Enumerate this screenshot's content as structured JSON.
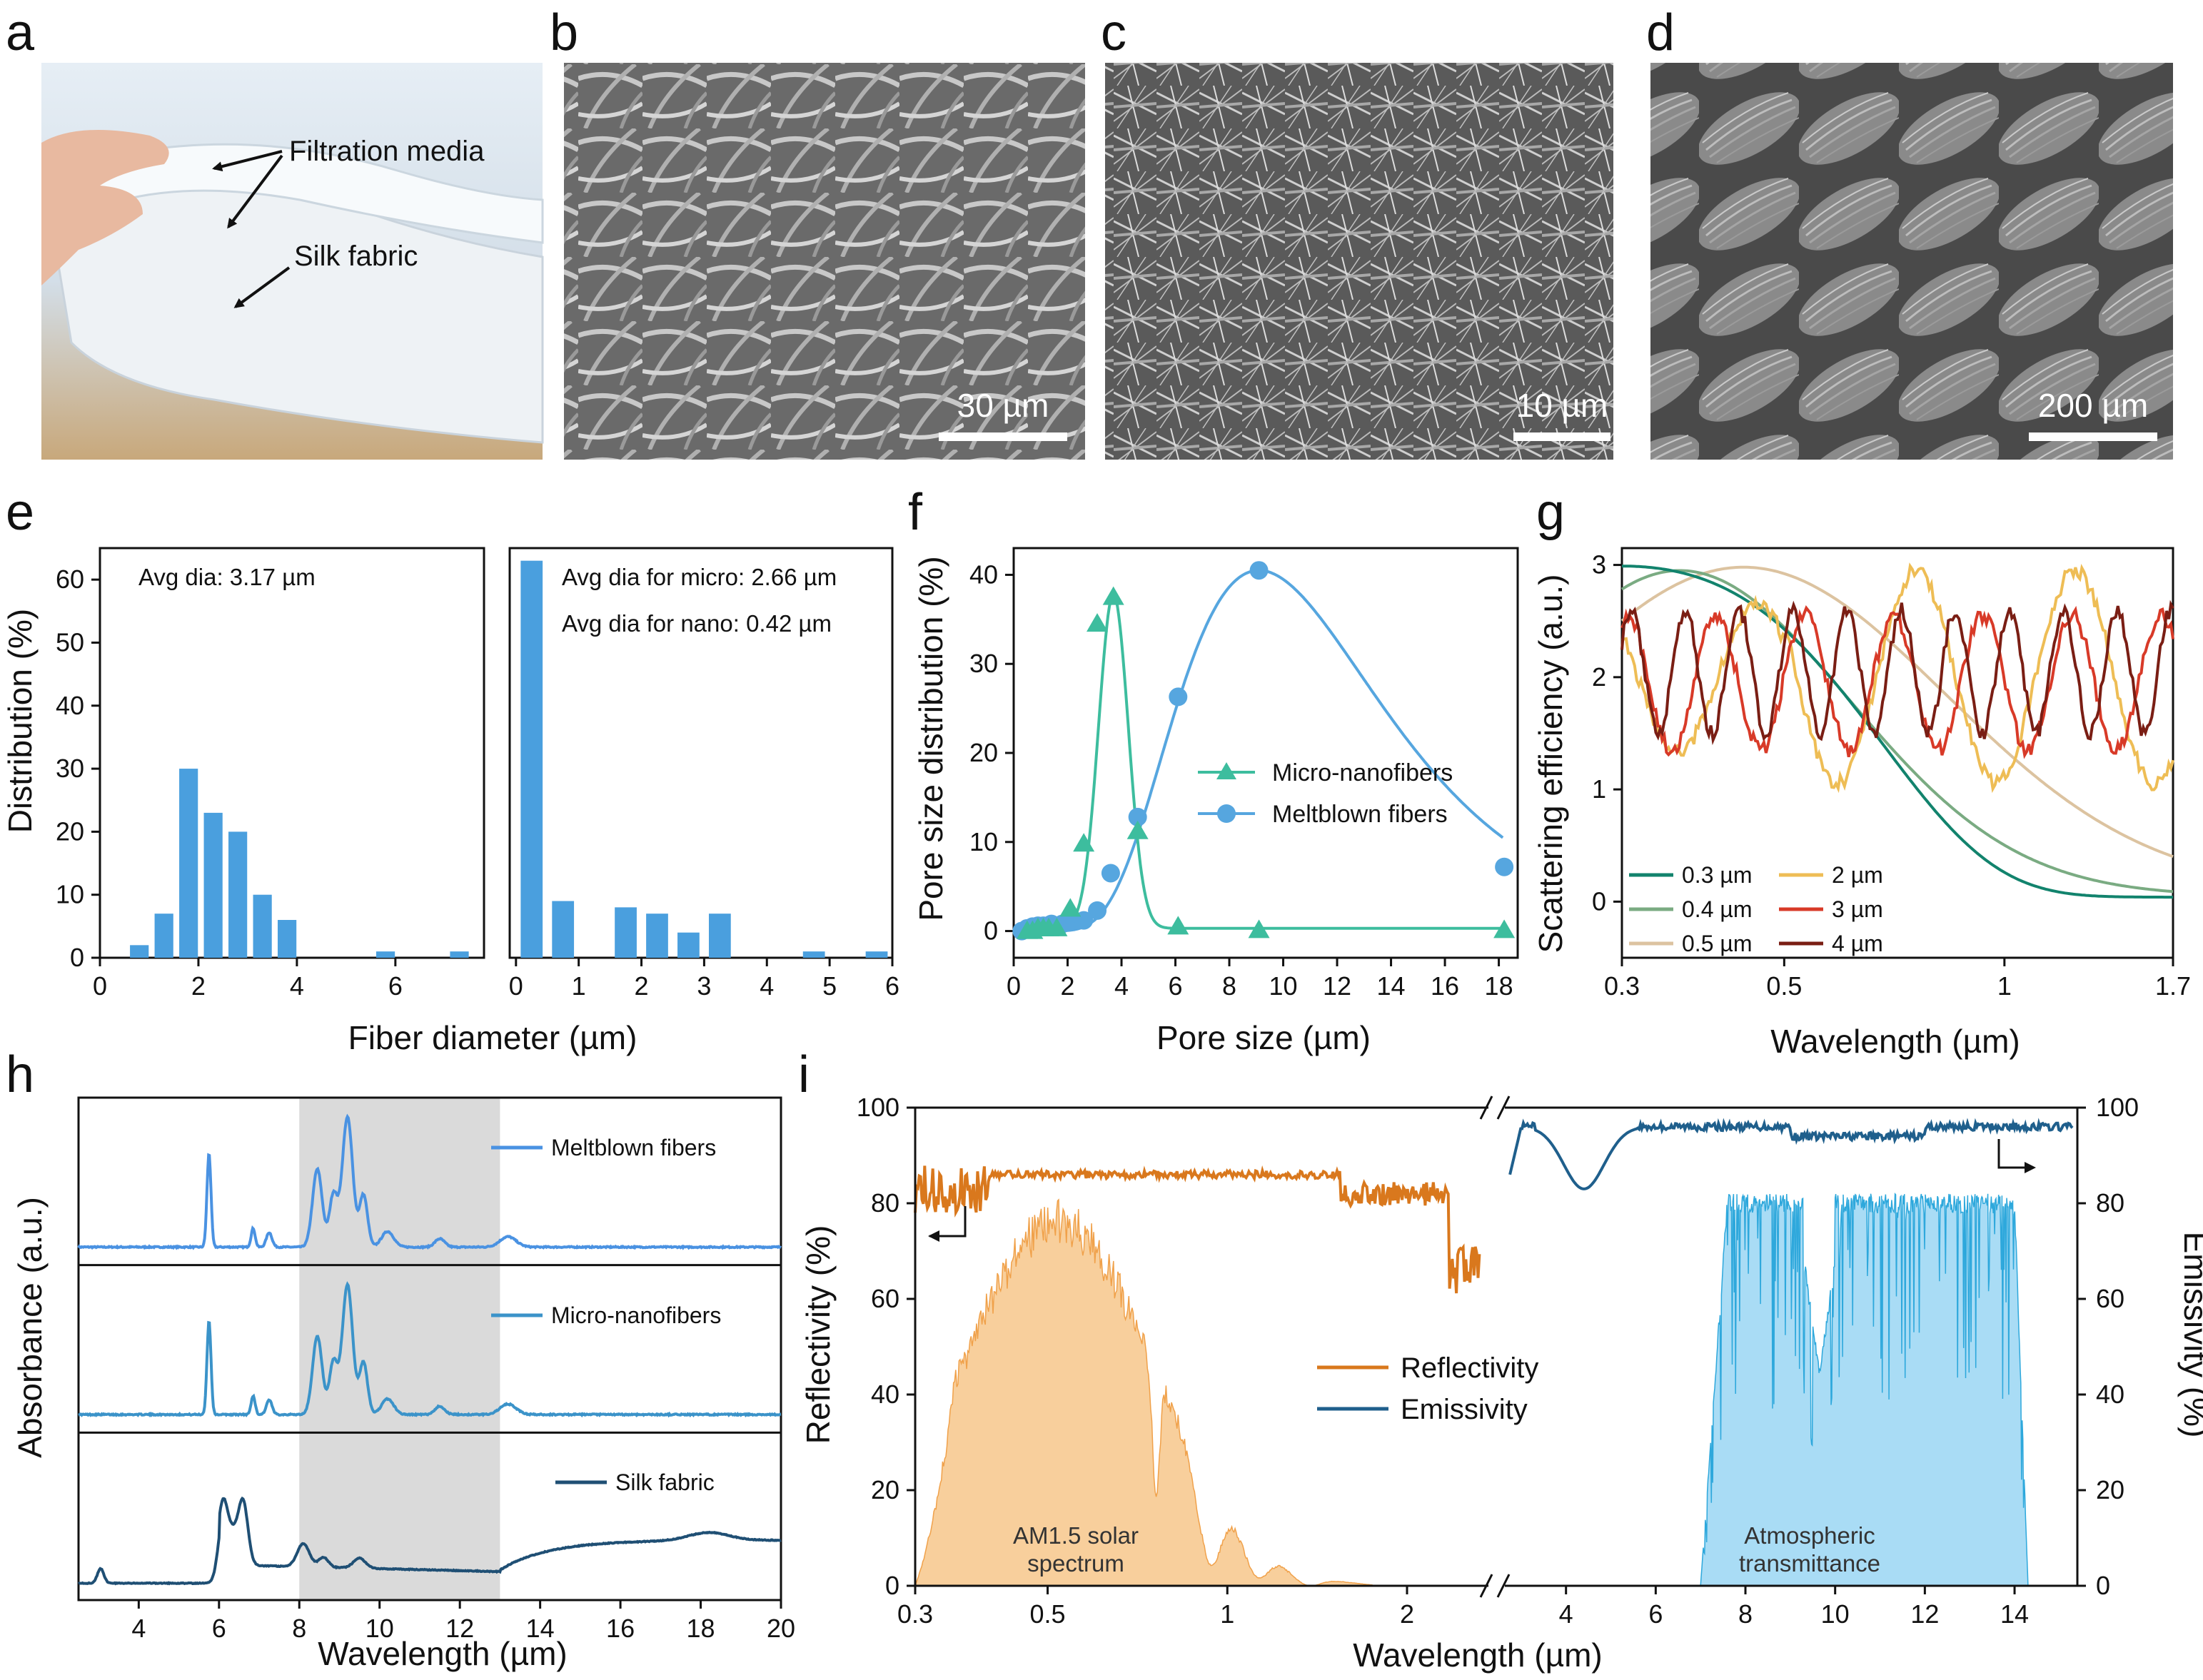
{
  "panel_letters": [
    "a",
    "b",
    "c",
    "d",
    "e",
    "f",
    "g",
    "h",
    "i"
  ],
  "photo_a": {
    "callout_filtration": "Filtration media",
    "callout_silk": "Silk fabric"
  },
  "sem": {
    "b_scale": "30 µm",
    "c_scale": "10 µm",
    "d_scale": "200 µm"
  },
  "colors": {
    "bar": "#4a9fde",
    "micro": "#3dbd9e",
    "meltblown": "#56a6df",
    "refl": "#d9781d",
    "emis": "#1f5f8c",
    "solar_fill": "#f8cf9c",
    "atm_fill": "#a9dcf5",
    "shade": "#dadada"
  },
  "chart_data": [
    {
      "panel": "e-left",
      "type": "bar",
      "ylabel": "Distribution (%)",
      "xlabel": "Fiber diameter (µm)",
      "annotation": "Avg dia: 3.17 µm",
      "xlim": [
        0,
        7.8
      ],
      "ylim": [
        0,
        65
      ],
      "xticks": [
        0,
        2,
        4,
        6
      ],
      "yticks": [
        0,
        10,
        20,
        30,
        40,
        50,
        60
      ],
      "bar_width": 0.38,
      "x": [
        0.8,
        1.3,
        1.8,
        2.3,
        2.8,
        3.3,
        3.8,
        4.3,
        4.8,
        5.3,
        5.8,
        6.3,
        6.8,
        7.3
      ],
      "values": [
        2,
        7,
        30,
        23,
        20,
        10,
        6,
        0,
        0,
        0,
        1,
        0,
        0,
        1
      ]
    },
    {
      "panel": "e-right",
      "type": "bar",
      "xlabel": "Fiber diameter (µm)",
      "annotations": [
        "Avg dia for micro: 2.66 µm",
        "Avg dia for nano: 0.42 µm"
      ],
      "xlim": [
        -0.1,
        6
      ],
      "ylim": [
        0,
        65
      ],
      "xticks": [
        0,
        1,
        2,
        3,
        4,
        5,
        6
      ],
      "bar_width": 0.35,
      "x": [
        0.25,
        0.75,
        1.25,
        1.75,
        2.25,
        2.75,
        3.25,
        3.75,
        4.25,
        4.75,
        5.25,
        5.75
      ],
      "values": [
        63,
        9,
        0,
        8,
        7,
        4,
        7,
        0,
        0,
        1,
        0,
        1
      ]
    },
    {
      "panel": "f",
      "type": "line",
      "xlabel": "Pore size (µm)",
      "ylabel": "Pore size distribution (%)",
      "xlim": [
        0,
        18.7
      ],
      "ylim": [
        -3,
        43
      ],
      "xticks": [
        0,
        2,
        4,
        6,
        8,
        10,
        12,
        14,
        16,
        18
      ],
      "yticks": [
        0,
        10,
        20,
        30,
        40
      ],
      "series": [
        {
          "name": "Micro-nanofibers",
          "marker": "triangle",
          "points": [
            [
              0.5,
              0
            ],
            [
              0.7,
              0
            ],
            [
              0.9,
              0.3
            ],
            [
              1.1,
              0.3
            ],
            [
              1.3,
              0.3
            ],
            [
              1.6,
              0.3
            ],
            [
              2.1,
              2.5
            ],
            [
              2.6,
              9.8
            ],
            [
              3.1,
              34.5
            ],
            [
              3.7,
              37.5
            ],
            [
              4.6,
              11.2
            ],
            [
              6.1,
              0.5
            ],
            [
              9.1,
              0.1
            ],
            [
              18.2,
              0.1
            ]
          ]
        },
        {
          "name": "Meltblown fibers",
          "marker": "circle",
          "points": [
            [
              0.3,
              0
            ],
            [
              0.5,
              0.3
            ],
            [
              0.7,
              0.5
            ],
            [
              0.9,
              0.6
            ],
            [
              1.1,
              0.6
            ],
            [
              1.4,
              0.8
            ],
            [
              1.8,
              0.8
            ],
            [
              2.1,
              1
            ],
            [
              2.6,
              1.2
            ],
            [
              3.1,
              2.3
            ],
            [
              3.6,
              6.5
            ],
            [
              4.6,
              12.8
            ],
            [
              6.1,
              26.3
            ],
            [
              9.1,
              40.5
            ],
            [
              18.2,
              7.2
            ]
          ]
        }
      ]
    },
    {
      "panel": "g",
      "type": "line",
      "xlabel": "Wavelength (µm)",
      "ylabel": "Scattering efficiency (a.u.)",
      "xlim": [
        0.3,
        1.7
      ],
      "ylim": [
        -0.5,
        3.15
      ],
      "xscale": "log",
      "xticks": [
        0.3,
        0.5,
        1,
        1.7
      ],
      "yticks": [
        0,
        1,
        2,
        3
      ],
      "legend": "bottom-left",
      "series": [
        {
          "name": "0.3 µm",
          "color": "#12836d"
        },
        {
          "name": "0.4 µm",
          "color": "#7aab82"
        },
        {
          "name": "0.5 µm",
          "color": "#dcc3a0"
        },
        {
          "name": "2 µm",
          "color": "#eebd55"
        },
        {
          "name": "3 µm",
          "color": "#d83a28"
        },
        {
          "name": "4 µm",
          "color": "#7a1e14"
        }
      ]
    },
    {
      "panel": "h",
      "type": "line",
      "xlabel": "Wavelength (µm)",
      "ylabel": "Absorbance (a.u.)",
      "xlim": [
        2.5,
        20
      ],
      "xticks": [
        4,
        6,
        8,
        10,
        12,
        14,
        16,
        18,
        20
      ],
      "shaded_region": [
        8,
        13
      ],
      "series": [
        {
          "name": "Meltblown fibers",
          "color": "#4a92e2"
        },
        {
          "name": "Micro-nanofibers",
          "color": "#3b93c9"
        },
        {
          "name": "Silk fabric",
          "color": "#1f4f74"
        }
      ]
    },
    {
      "panel": "i",
      "type": "area",
      "xlabel": "Wavelength (µm)",
      "ylabel_left": "Reflectivity (%)",
      "ylabel_right": "Emissivity (%)",
      "ylim": [
        0,
        100
      ],
      "yticks": [
        0,
        20,
        40,
        60,
        80,
        100
      ],
      "xticks_left": [
        0.3,
        0.5,
        1,
        2
      ],
      "xticks_right": [
        4,
        6,
        8,
        10,
        12,
        14
      ],
      "series": [
        {
          "name": "Reflectivity"
        },
        {
          "name": "Emissivity"
        }
      ],
      "labels": {
        "solar_1": "AM1.5 solar",
        "solar_2": "spectrum",
        "atm_1": "Atmospheric",
        "atm_2": "transmittance"
      }
    }
  ]
}
